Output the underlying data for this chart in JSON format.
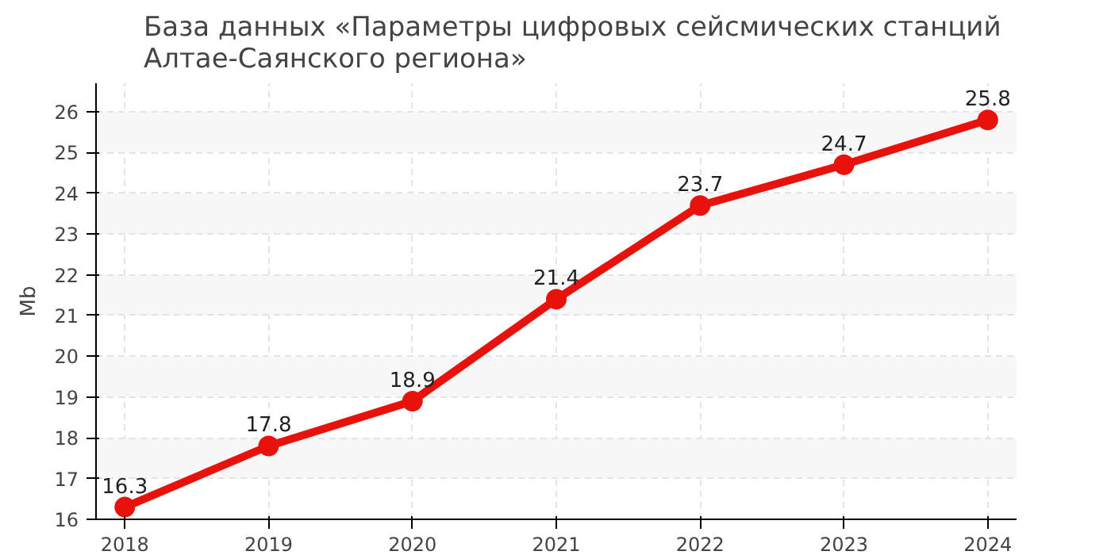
{
  "chart_data": {
    "type": "line",
    "title": "База данных «Параметры цифровых сейсмических станций\nАлтае-Саянского региона»",
    "ylabel": "Mb",
    "x": [
      2018,
      2019,
      2020,
      2021,
      2022,
      2023,
      2024
    ],
    "series": [
      {
        "color": "#e8120c",
        "values": [
          16.3,
          17.8,
          18.9,
          21.4,
          23.7,
          24.7,
          25.8
        ]
      }
    ],
    "xlim": [
      2017.8,
      2024.2
    ],
    "xticks": [
      2018,
      2019,
      2020,
      2021,
      2022,
      2023,
      2024
    ],
    "ylim": [
      16,
      26.7
    ],
    "yticks": [
      16,
      17,
      18,
      19,
      20,
      21,
      22,
      23,
      24,
      25,
      26
    ],
    "grid": true,
    "marker": "circle",
    "line_style": "solid",
    "data_labels": true
  }
}
